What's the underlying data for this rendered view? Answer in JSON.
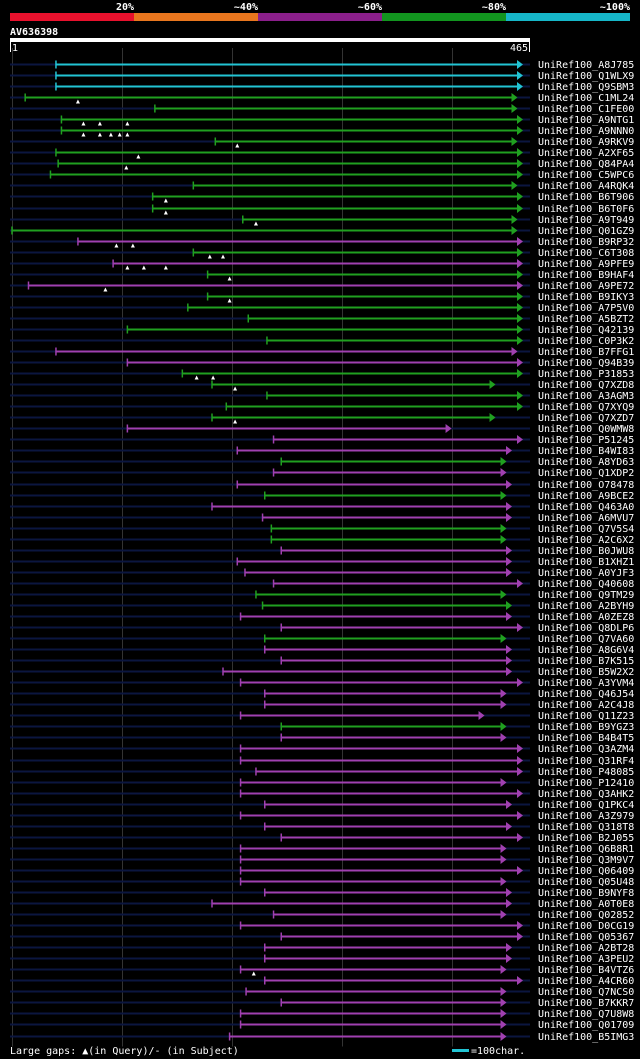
{
  "legend": {
    "ticks": [
      "20%",
      "~40%",
      "~60%",
      "~80%",
      "~100%"
    ],
    "colors": [
      "#e8112d",
      "#e8761e",
      "#8b1f8b",
      "#12951f",
      "#16b6c8"
    ]
  },
  "query": {
    "name": "AV636398",
    "start": "1",
    "end": "465",
    "length": 465
  },
  "colors": {
    "cyan": "#22c4d4",
    "green": "#20a020",
    "purple": "#a040b0"
  },
  "hits": [
    {
      "id": "UniRef100_A8J785",
      "c": "cyan",
      "s": 40,
      "e": 465,
      "g": []
    },
    {
      "id": "UniRef100_Q1WLX9",
      "c": "cyan",
      "s": 40,
      "e": 465,
      "g": []
    },
    {
      "id": "UniRef100_Q9SBM3",
      "c": "cyan",
      "s": 40,
      "e": 465,
      "g": []
    },
    {
      "id": "UniRef100_C1ML24",
      "c": "green",
      "s": 12,
      "e": 460,
      "g": [
        60
      ]
    },
    {
      "id": "UniRef100_C1FE00",
      "c": "green",
      "s": 130,
      "e": 460,
      "g": []
    },
    {
      "id": "UniRef100_A9NTG1",
      "c": "green",
      "s": 45,
      "e": 465,
      "g": [
        65,
        80,
        105
      ]
    },
    {
      "id": "UniRef100_A9NNN0",
      "c": "green",
      "s": 45,
      "e": 465,
      "g": [
        65,
        80,
        90,
        98,
        105
      ]
    },
    {
      "id": "UniRef100_A9RKV9",
      "c": "green",
      "s": 185,
      "e": 460,
      "g": [
        205
      ]
    },
    {
      "id": "UniRef100_A2XF65",
      "c": "green",
      "s": 40,
      "e": 465,
      "g": [
        115
      ]
    },
    {
      "id": "UniRef100_Q84PA4",
      "c": "green",
      "s": 42,
      "e": 465,
      "g": [
        104
      ]
    },
    {
      "id": "UniRef100_C5WPC6",
      "c": "green",
      "s": 35,
      "e": 465,
      "g": []
    },
    {
      "id": "UniRef100_A4RQK4",
      "c": "green",
      "s": 165,
      "e": 460,
      "g": []
    },
    {
      "id": "UniRef100_B6T906",
      "c": "green",
      "s": 128,
      "e": 465,
      "g": [
        140
      ]
    },
    {
      "id": "UniRef100_B6T0F6",
      "c": "green",
      "s": 128,
      "e": 465,
      "g": [
        140
      ]
    },
    {
      "id": "UniRef100_A9T949",
      "c": "green",
      "s": 210,
      "e": 460,
      "g": [
        222
      ]
    },
    {
      "id": "UniRef100_Q01GZ9",
      "c": "green",
      "s": 0,
      "e": 460,
      "g": []
    },
    {
      "id": "UniRef100_B9RP32",
      "c": "purple",
      "s": 60,
      "e": 465,
      "g": [
        95,
        110
      ]
    },
    {
      "id": "UniRef100_C6T308",
      "c": "green",
      "s": 165,
      "e": 465,
      "g": [
        180,
        192
      ]
    },
    {
      "id": "UniRef100_A9PFE9",
      "c": "purple",
      "s": 92,
      "e": 465,
      "g": [
        105,
        120,
        140
      ]
    },
    {
      "id": "UniRef100_B9HAF4",
      "c": "green",
      "s": 178,
      "e": 465,
      "g": [
        198
      ]
    },
    {
      "id": "UniRef100_A9PE72",
      "c": "purple",
      "s": 15,
      "e": 465,
      "g": [
        85
      ]
    },
    {
      "id": "UniRef100_B9IKY3",
      "c": "green",
      "s": 178,
      "e": 465,
      "g": [
        198
      ]
    },
    {
      "id": "UniRef100_A7P5V0",
      "c": "green",
      "s": 160,
      "e": 465,
      "g": []
    },
    {
      "id": "UniRef100_A5BZT2",
      "c": "green",
      "s": 215,
      "e": 465,
      "g": []
    },
    {
      "id": "UniRef100_Q42139",
      "c": "green",
      "s": 105,
      "e": 465,
      "g": []
    },
    {
      "id": "UniRef100_C0P3K2",
      "c": "green",
      "s": 232,
      "e": 465,
      "g": []
    },
    {
      "id": "UniRef100_B7FFG1",
      "c": "purple",
      "s": 40,
      "e": 460,
      "g": []
    },
    {
      "id": "UniRef100_Q94B39",
      "c": "purple",
      "s": 105,
      "e": 465,
      "g": []
    },
    {
      "id": "UniRef100_P31853",
      "c": "green",
      "s": 155,
      "e": 465,
      "g": [
        168,
        183
      ]
    },
    {
      "id": "UniRef100_Q7XZD8",
      "c": "green",
      "s": 182,
      "e": 440,
      "g": [
        203
      ]
    },
    {
      "id": "UniRef100_A3AGM3",
      "c": "green",
      "s": 232,
      "e": 465,
      "g": []
    },
    {
      "id": "UniRef100_Q7XYQ9",
      "c": "green",
      "s": 195,
      "e": 465,
      "g": []
    },
    {
      "id": "UniRef100_Q7XZD7",
      "c": "green",
      "s": 182,
      "e": 440,
      "g": [
        203
      ]
    },
    {
      "id": "UniRef100_Q0WMW8",
      "c": "purple",
      "s": 105,
      "e": 400,
      "g": []
    },
    {
      "id": "UniRef100_P51245",
      "c": "purple",
      "s": 238,
      "e": 465,
      "g": []
    },
    {
      "id": "UniRef100_B4WI83",
      "c": "purple",
      "s": 205,
      "e": 455,
      "g": []
    },
    {
      "id": "UniRef100_A8YD63",
      "c": "green",
      "s": 245,
      "e": 450,
      "g": []
    },
    {
      "id": "UniRef100_Q1XDP2",
      "c": "purple",
      "s": 238,
      "e": 450,
      "g": []
    },
    {
      "id": "UniRef100_O78478",
      "c": "purple",
      "s": 205,
      "e": 455,
      "g": []
    },
    {
      "id": "UniRef100_A9BCE2",
      "c": "green",
      "s": 230,
      "e": 450,
      "g": []
    },
    {
      "id": "UniRef100_Q463A0",
      "c": "purple",
      "s": 182,
      "e": 455,
      "g": []
    },
    {
      "id": "UniRef100_A6MVU7",
      "c": "purple",
      "s": 228,
      "e": 455,
      "g": []
    },
    {
      "id": "UniRef100_Q7V5S4",
      "c": "green",
      "s": 236,
      "e": 450,
      "g": []
    },
    {
      "id": "UniRef100_A2C6X2",
      "c": "green",
      "s": 236,
      "e": 450,
      "g": []
    },
    {
      "id": "UniRef100_B0JWU8",
      "c": "purple",
      "s": 245,
      "e": 455,
      "g": []
    },
    {
      "id": "UniRef100_B1XHZ1",
      "c": "purple",
      "s": 205,
      "e": 455,
      "g": []
    },
    {
      "id": "UniRef100_A0YJF3",
      "c": "purple",
      "s": 212,
      "e": 455,
      "g": []
    },
    {
      "id": "UniRef100_Q40608",
      "c": "purple",
      "s": 238,
      "e": 465,
      "g": []
    },
    {
      "id": "UniRef100_Q9TM29",
      "c": "green",
      "s": 222,
      "e": 450,
      "g": []
    },
    {
      "id": "UniRef100_A2BYH9",
      "c": "green",
      "s": 228,
      "e": 455,
      "g": []
    },
    {
      "id": "UniRef100_A0ZEZ8",
      "c": "purple",
      "s": 208,
      "e": 455,
      "g": []
    },
    {
      "id": "UniRef100_Q8DLP6",
      "c": "purple",
      "s": 245,
      "e": 465,
      "g": []
    },
    {
      "id": "UniRef100_Q7VA60",
      "c": "green",
      "s": 230,
      "e": 450,
      "g": []
    },
    {
      "id": "UniRef100_A8G6V4",
      "c": "purple",
      "s": 230,
      "e": 455,
      "g": []
    },
    {
      "id": "UniRef100_B7K515",
      "c": "purple",
      "s": 245,
      "e": 455,
      "g": []
    },
    {
      "id": "UniRef100_B5W2X2",
      "c": "purple",
      "s": 192,
      "e": 455,
      "g": []
    },
    {
      "id": "UniRef100_A3YVM4",
      "c": "purple",
      "s": 208,
      "e": 465,
      "g": []
    },
    {
      "id": "UniRef100_Q46J54",
      "c": "purple",
      "s": 230,
      "e": 450,
      "g": []
    },
    {
      "id": "UniRef100_A2C4J8",
      "c": "purple",
      "s": 230,
      "e": 450,
      "g": []
    },
    {
      "id": "UniRef100_Q11Z23",
      "c": "purple",
      "s": 208,
      "e": 430,
      "g": []
    },
    {
      "id": "UniRef100_B9YGZ3",
      "c": "green",
      "s": 245,
      "e": 450,
      "g": []
    },
    {
      "id": "UniRef100_B4B4T5",
      "c": "purple",
      "s": 245,
      "e": 450,
      "g": []
    },
    {
      "id": "UniRef100_Q3AZM4",
      "c": "purple",
      "s": 208,
      "e": 465,
      "g": []
    },
    {
      "id": "UniRef100_Q31RF4",
      "c": "purple",
      "s": 208,
      "e": 465,
      "g": []
    },
    {
      "id": "UniRef100_P48085",
      "c": "purple",
      "s": 222,
      "e": 465,
      "g": []
    },
    {
      "id": "UniRef100_P12410",
      "c": "purple",
      "s": 208,
      "e": 450,
      "g": []
    },
    {
      "id": "UniRef100_Q3AHK2",
      "c": "purple",
      "s": 208,
      "e": 465,
      "g": []
    },
    {
      "id": "UniRef100_Q1PKC4",
      "c": "purple",
      "s": 230,
      "e": 455,
      "g": []
    },
    {
      "id": "UniRef100_A3Z979",
      "c": "purple",
      "s": 208,
      "e": 465,
      "g": []
    },
    {
      "id": "UniRef100_Q318T8",
      "c": "purple",
      "s": 230,
      "e": 455,
      "g": []
    },
    {
      "id": "UniRef100_B2J055",
      "c": "purple",
      "s": 245,
      "e": 465,
      "g": []
    },
    {
      "id": "UniRef100_Q6B8R1",
      "c": "purple",
      "s": 208,
      "e": 450,
      "g": []
    },
    {
      "id": "UniRef100_Q3M9V7",
      "c": "purple",
      "s": 208,
      "e": 450,
      "g": []
    },
    {
      "id": "UniRef100_Q06409",
      "c": "purple",
      "s": 208,
      "e": 465,
      "g": []
    },
    {
      "id": "UniRef100_Q05U48",
      "c": "purple",
      "s": 208,
      "e": 450,
      "g": []
    },
    {
      "id": "UniRef100_B9NYF8",
      "c": "purple",
      "s": 230,
      "e": 455,
      "g": []
    },
    {
      "id": "UniRef100_A0T0E8",
      "c": "purple",
      "s": 182,
      "e": 455,
      "g": []
    },
    {
      "id": "UniRef100_Q02852",
      "c": "purple",
      "s": 238,
      "e": 450,
      "g": []
    },
    {
      "id": "UniRef100_D0CG19",
      "c": "purple",
      "s": 208,
      "e": 465,
      "g": []
    },
    {
      "id": "UniRef100_Q05367",
      "c": "purple",
      "s": 245,
      "e": 465,
      "g": []
    },
    {
      "id": "UniRef100_A2BT28",
      "c": "purple",
      "s": 230,
      "e": 455,
      "g": []
    },
    {
      "id": "UniRef100_A3PEU2",
      "c": "purple",
      "s": 230,
      "e": 455,
      "g": []
    },
    {
      "id": "UniRef100_B4VTZ6",
      "c": "purple",
      "s": 208,
      "e": 450,
      "g": [
        220
      ]
    },
    {
      "id": "UniRef100_A4CR60",
      "c": "purple",
      "s": 230,
      "e": 465,
      "g": []
    },
    {
      "id": "UniRef100_Q7NCS0",
      "c": "purple",
      "s": 213,
      "e": 450,
      "g": []
    },
    {
      "id": "UniRef100_B7KKR7",
      "c": "purple",
      "s": 245,
      "e": 450,
      "g": []
    },
    {
      "id": "UniRef100_Q7U8W8",
      "c": "purple",
      "s": 208,
      "e": 450,
      "g": []
    },
    {
      "id": "UniRef100_Q01709",
      "c": "purple",
      "s": 208,
      "e": 450,
      "g": []
    },
    {
      "id": "UniRef100_B5IMG3",
      "c": "purple",
      "s": 198,
      "e": 450,
      "g": []
    }
  ],
  "footer": {
    "gaps_label": "Large gaps: ▲(in Query)/- (in Subject)",
    "scale_label": "=100char."
  }
}
